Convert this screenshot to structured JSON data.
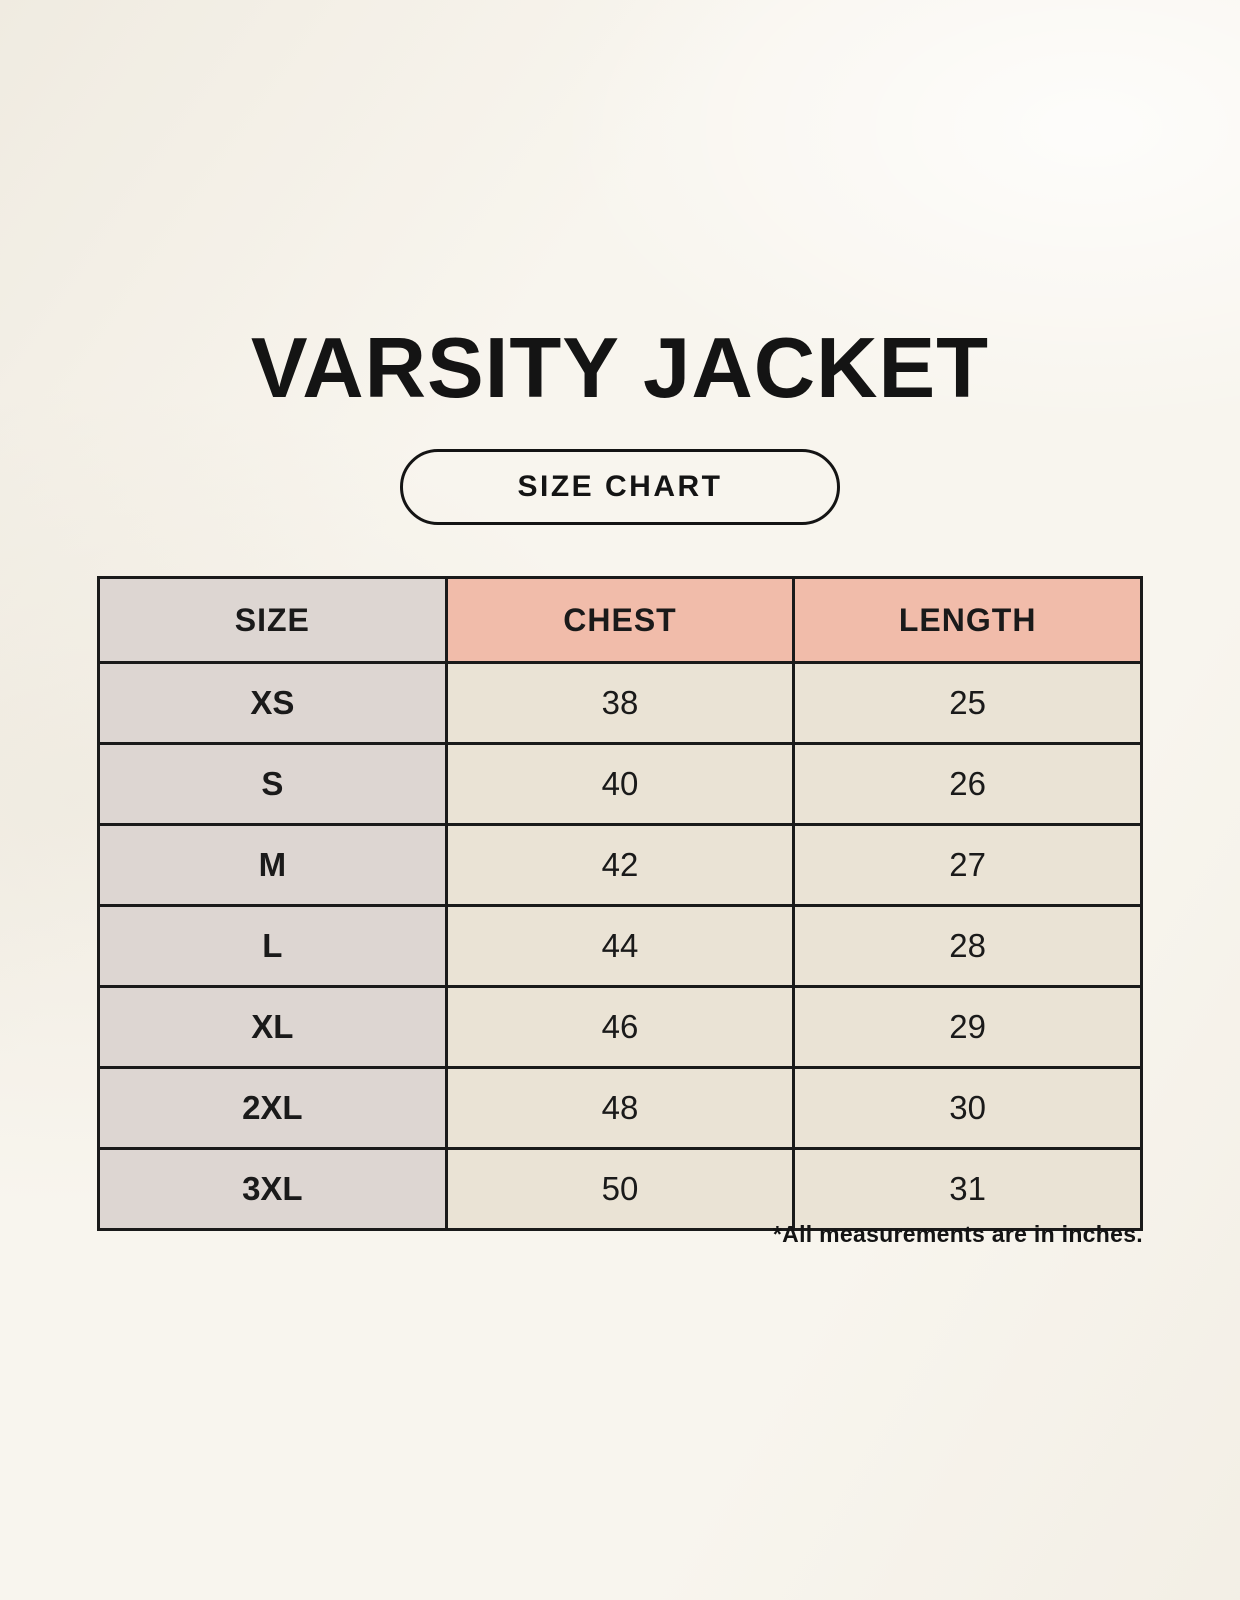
{
  "page": {
    "title": "VARSITY JACKET",
    "badge_label": "SIZE CHART",
    "footnote": "*All measurements are in inches."
  },
  "colors": {
    "background": "#F8F5EE",
    "size_column_bg": "#DDD6D2",
    "measure_header_bg": "#F1BCAA",
    "data_cell_bg": "#EAE3D5",
    "border": "#1A1A1A",
    "text": "#141414"
  },
  "chart_data": {
    "type": "table",
    "title": "VARSITY JACKET SIZE CHART",
    "columns": [
      "SIZE",
      "CHEST",
      "LENGTH"
    ],
    "rows": [
      [
        "XS",
        38,
        25
      ],
      [
        "S",
        40,
        26
      ],
      [
        "M",
        42,
        27
      ],
      [
        "L",
        44,
        28
      ],
      [
        "XL",
        46,
        29
      ],
      [
        "2XL",
        48,
        30
      ],
      [
        "3XL",
        50,
        31
      ]
    ],
    "units": "inches",
    "note": "*All measurements are in inches."
  }
}
